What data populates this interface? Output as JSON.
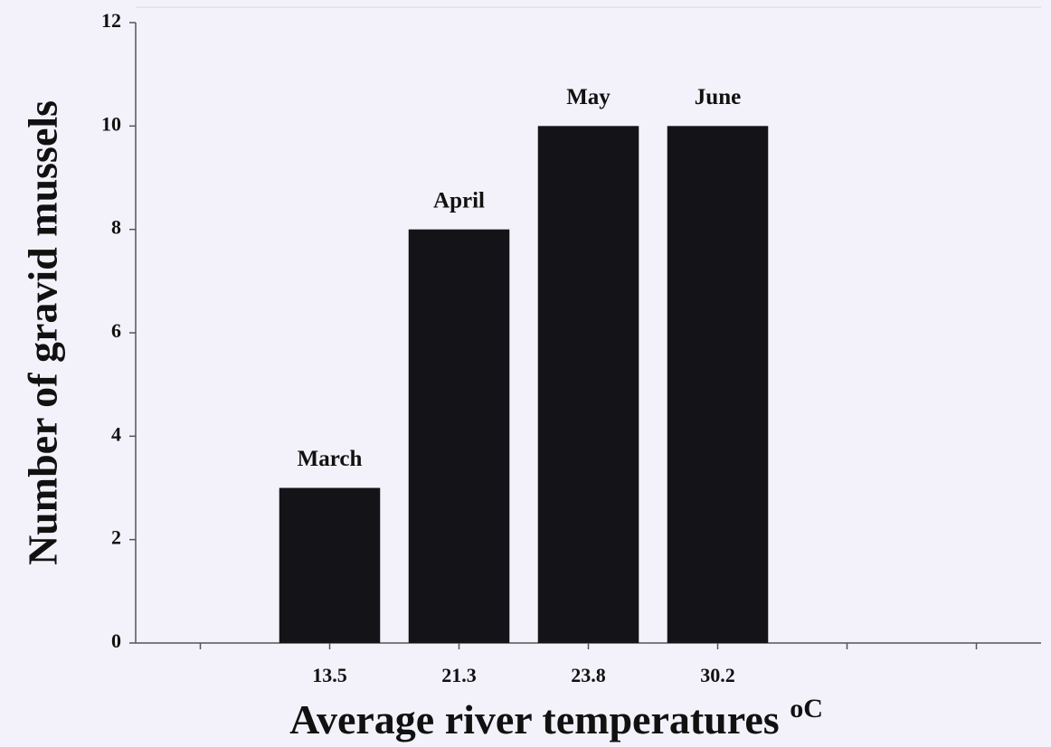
{
  "chart_data": {
    "type": "bar",
    "x_label": "Average river temperatures",
    "x_label_unit": "oC",
    "y_label": "Number of gravid mussels",
    "categories": [
      null,
      "13.5",
      "21.3",
      "23.8",
      "30.2",
      null,
      null
    ],
    "values": [
      null,
      3,
      8,
      10,
      10,
      null,
      null
    ],
    "annotations": [
      null,
      "March",
      "April",
      "May",
      "June",
      null,
      null
    ],
    "color": "#141318",
    "ylim": [
      0,
      12
    ],
    "yticks": [
      0,
      2,
      4,
      6,
      8,
      10,
      12
    ],
    "grid": false
  }
}
